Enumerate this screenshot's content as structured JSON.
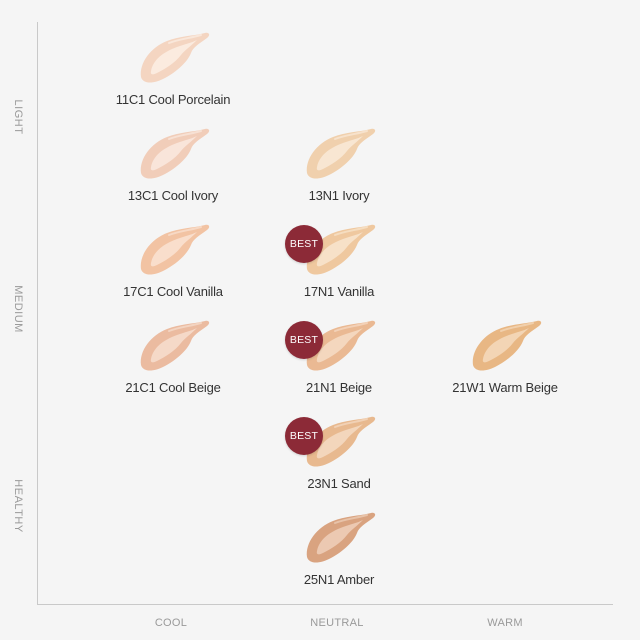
{
  "chart": {
    "y_axis_labels": [
      "LIGHT",
      "MEDIUM",
      "HEALTHY"
    ],
    "x_axis_labels": [
      "COOL",
      "NEUTRAL",
      "WARM"
    ]
  },
  "best_label": "BEST",
  "shades": [
    {
      "id": "11c1",
      "name": "11C1 Cool Porcelain",
      "undertone": "COOL",
      "color": "#f4d5c1",
      "highlight": "#fbeee4",
      "best": false
    },
    {
      "id": "13c1",
      "name": "13C1 Cool Ivory",
      "undertone": "COOL",
      "color": "#f1cdb9",
      "highlight": "#fae9df",
      "best": false
    },
    {
      "id": "13n1",
      "name": "13N1 Ivory",
      "undertone": "NEUTRAL",
      "color": "#f0d0ad",
      "highlight": "#f9ead8",
      "best": false
    },
    {
      "id": "17c1",
      "name": "17C1 Cool Vanilla",
      "undertone": "COOL",
      "color": "#f2c3a3",
      "highlight": "#fae3d3",
      "best": false
    },
    {
      "id": "17n1",
      "name": "17N1 Vanilla",
      "undertone": "NEUTRAL",
      "color": "#efc89f",
      "highlight": "#f8e5cf",
      "best": true
    },
    {
      "id": "21c1",
      "name": "21C1 Cool Beige",
      "undertone": "COOL",
      "color": "#ebbba0",
      "highlight": "#f7decf",
      "best": false
    },
    {
      "id": "21n1",
      "name": "21N1 Beige",
      "undertone": "NEUTRAL",
      "color": "#eab993",
      "highlight": "#f6dcc6",
      "best": true
    },
    {
      "id": "21w1",
      "name": "21W1 Warm Beige",
      "undertone": "WARM",
      "color": "#e8b784",
      "highlight": "#f5dabd",
      "best": false
    },
    {
      "id": "23n1",
      "name": "23N1 Sand",
      "undertone": "NEUTRAL",
      "color": "#e8b98f",
      "highlight": "#f5dbc4",
      "best": true
    },
    {
      "id": "25n1",
      "name": "25N1 Amber",
      "undertone": "NEUTRAL",
      "color": "#d9a380",
      "highlight": "#eed0bb",
      "best": false
    }
  ]
}
